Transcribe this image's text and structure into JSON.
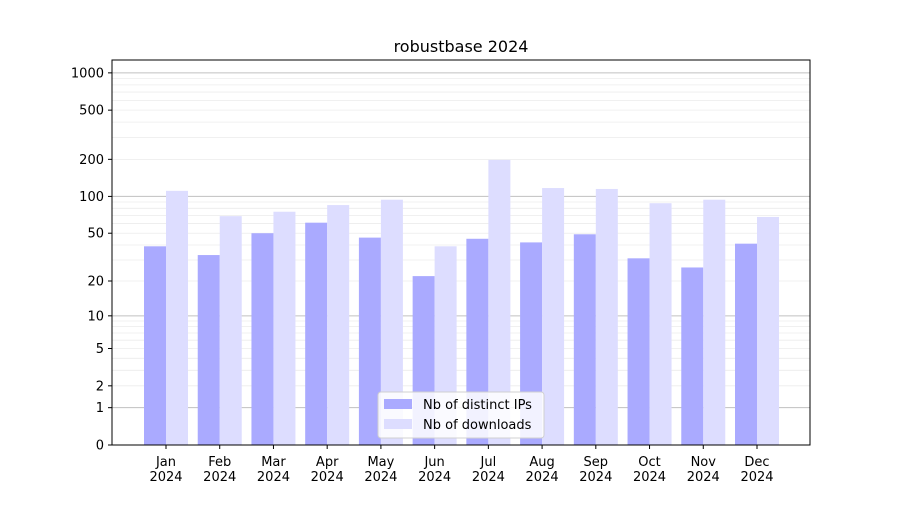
{
  "chart_data": {
    "type": "bar",
    "title": "robustbase 2024",
    "xlabel": "",
    "ylabel": "",
    "yscale": "log(1+y)",
    "ylim": [
      0,
      1270
    ],
    "yticks": [
      0,
      1,
      2,
      5,
      10,
      20,
      50,
      100,
      200,
      500,
      1000
    ],
    "grid": true,
    "legend_placement": "bottom-center",
    "categories": [
      "Jan\n2024",
      "Feb\n2024",
      "Mar\n2024",
      "Apr\n2024",
      "May\n2024",
      "Jun\n2024",
      "Jul\n2024",
      "Aug\n2024",
      "Sep\n2024",
      "Oct\n2024",
      "Nov\n2024",
      "Dec\n2024"
    ],
    "series": [
      {
        "name": "Nb of distinct IPs",
        "color": "#aaaaff",
        "values": [
          39,
          33,
          50,
          61,
          46,
          22,
          45,
          42,
          49,
          31,
          26,
          41
        ]
      },
      {
        "name": "Nb of downloads",
        "color": "#ddddff",
        "values": [
          111,
          69,
          75,
          85,
          94,
          39,
          198,
          117,
          115,
          88,
          94,
          68
        ]
      }
    ]
  }
}
